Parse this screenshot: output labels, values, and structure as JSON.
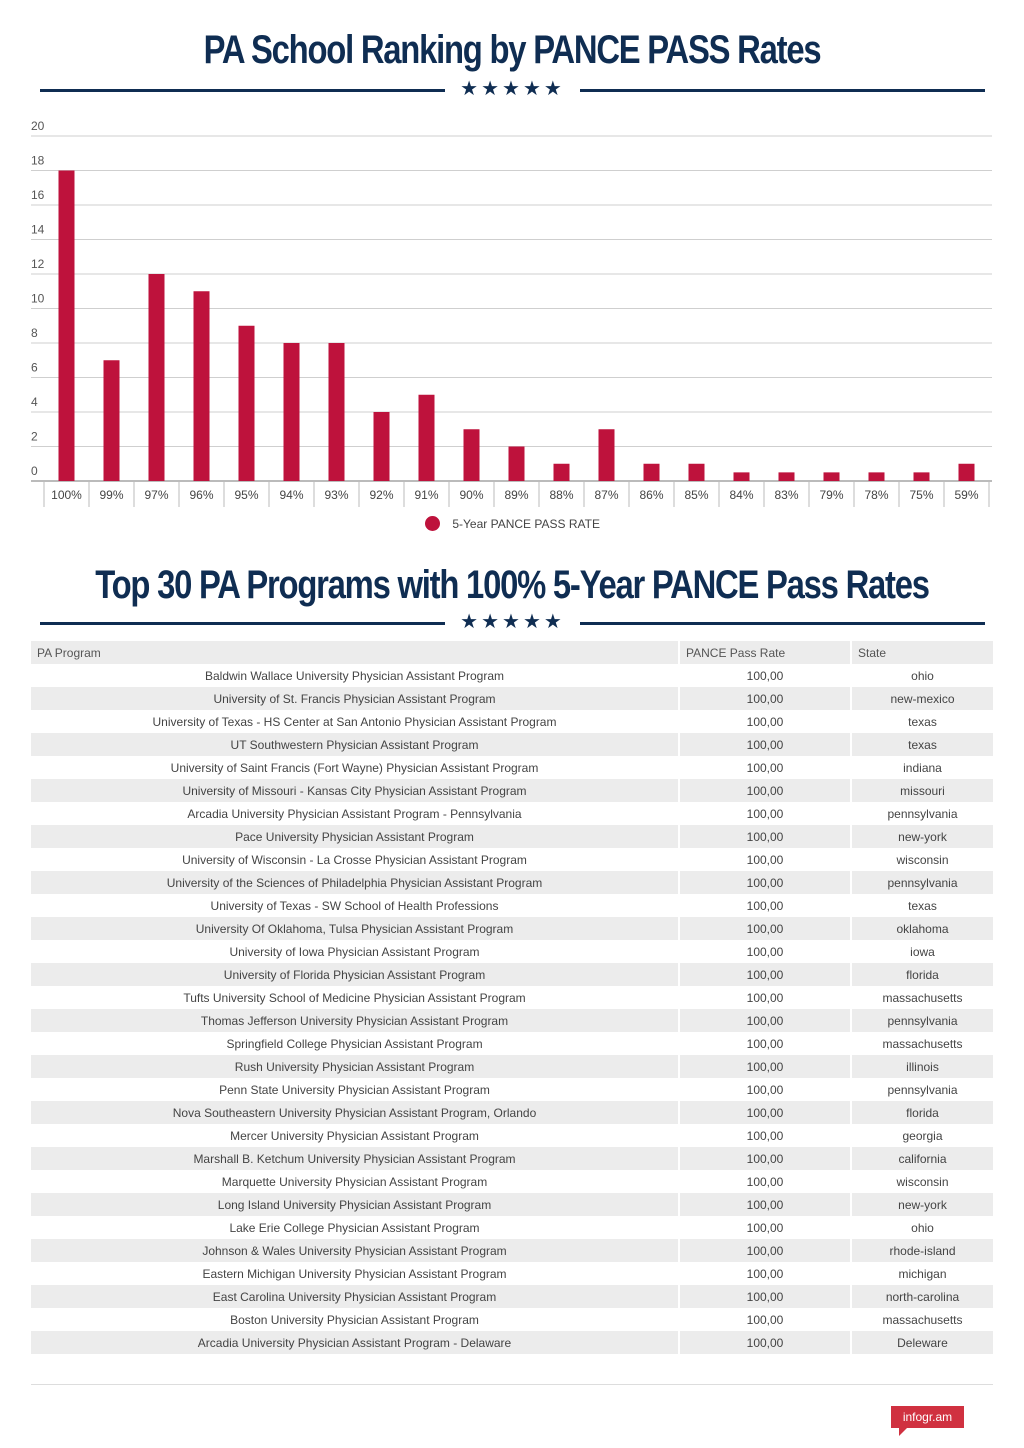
{
  "header": {
    "title": "PA School Ranking by PANCE PASS Rates",
    "stars": "★★★★★"
  },
  "chart_data": {
    "type": "bar",
    "categories": [
      "100%",
      "99%",
      "97%",
      "96%",
      "95%",
      "94%",
      "93%",
      "92%",
      "91%",
      "90%",
      "89%",
      "88%",
      "87%",
      "86%",
      "85%",
      "84%",
      "83%",
      "79%",
      "78%",
      "75%",
      "59%"
    ],
    "series": [
      {
        "name": "5-Year PANCE PASS RATE",
        "values": [
          18,
          7,
          12,
          11,
          9,
          8,
          8,
          4,
          5,
          3,
          2,
          1,
          3,
          1,
          1,
          0.5,
          0.5,
          0.5,
          0.5,
          0.5,
          1
        ]
      }
    ],
    "yticks": [
      0,
      2,
      4,
      6,
      8,
      10,
      12,
      14,
      16,
      18,
      20
    ],
    "ylim": [
      0,
      20
    ],
    "grid": true,
    "legend_position": "bottom",
    "bar_color": "#be123c"
  },
  "legend": {
    "label": "5-Year PANCE PASS RATE"
  },
  "table_section": {
    "title": "Top 30 PA Programs with 100% 5-Year PANCE Pass Rates",
    "stars": "★★★★★",
    "columns": [
      "PA Program",
      "PANCE Pass Rate",
      "State"
    ],
    "rows": [
      [
        "Baldwin Wallace University Physician Assistant Program",
        "100,00",
        "ohio"
      ],
      [
        "University of St. Francis Physician Assistant Program",
        "100,00",
        "new-mexico"
      ],
      [
        "University of Texas - HS Center at San Antonio Physician Assistant Program",
        "100,00",
        "texas"
      ],
      [
        "UT Southwestern Physician Assistant Program",
        "100,00",
        "texas"
      ],
      [
        "University of Saint Francis (Fort Wayne) Physician Assistant Program",
        "100,00",
        "indiana"
      ],
      [
        "University of Missouri - Kansas City Physician Assistant Program",
        "100,00",
        "missouri"
      ],
      [
        "Arcadia University Physician Assistant Program - Pennsylvania",
        "100,00",
        "pennsylvania"
      ],
      [
        "Pace University Physician Assistant Program",
        "100,00",
        "new-york"
      ],
      [
        "University of Wisconsin - La Crosse Physician Assistant Program",
        "100,00",
        "wisconsin"
      ],
      [
        "University of the Sciences of Philadelphia Physician Assistant Program",
        "100,00",
        "pennsylvania"
      ],
      [
        "University of Texas - SW School of Health Professions",
        "100,00",
        "texas"
      ],
      [
        "University Of Oklahoma, Tulsa Physician Assistant Program",
        "100,00",
        "oklahoma"
      ],
      [
        "University of Iowa Physician Assistant Program",
        "100,00",
        "iowa"
      ],
      [
        "University of Florida Physician Assistant Program",
        "100,00",
        "florida"
      ],
      [
        "Tufts University School of Medicine Physician Assistant Program",
        "100,00",
        "massachusetts"
      ],
      [
        "Thomas Jefferson University Physician Assistant Program",
        "100,00",
        "pennsylvania"
      ],
      [
        "Springfield College Physician Assistant Program",
        "100,00",
        "massachusetts"
      ],
      [
        "Rush University Physician Assistant Program",
        "100,00",
        "illinois"
      ],
      [
        "Penn State University Physician Assistant Program",
        "100,00",
        "pennsylvania"
      ],
      [
        "Nova Southeastern University Physician Assistant Program, Orlando",
        "100,00",
        "florida"
      ],
      [
        "Mercer University Physician Assistant Program",
        "100,00",
        "georgia"
      ],
      [
        "Marshall B. Ketchum University Physician Assistant Program",
        "100,00",
        "california"
      ],
      [
        "Marquette University Physician Assistant Program",
        "100,00",
        "wisconsin"
      ],
      [
        "Long Island University Physician Assistant Program",
        "100,00",
        "new-york"
      ],
      [
        "Lake Erie College Physician Assistant Program",
        "100,00",
        "ohio"
      ],
      [
        "Johnson & Wales University Physician Assistant Program",
        "100,00",
        "rhode-island"
      ],
      [
        "Eastern Michigan University Physician Assistant Program",
        "100,00",
        "michigan"
      ],
      [
        "East Carolina University Physician Assistant Program",
        "100,00",
        "north-carolina"
      ],
      [
        "Boston University Physician Assistant Program",
        "100,00",
        "massachusetts"
      ],
      [
        "Arcadia University Physician Assistant Program - Delaware",
        "100,00",
        "Deleware"
      ]
    ]
  },
  "footer": {
    "brand": "infogr.am"
  }
}
